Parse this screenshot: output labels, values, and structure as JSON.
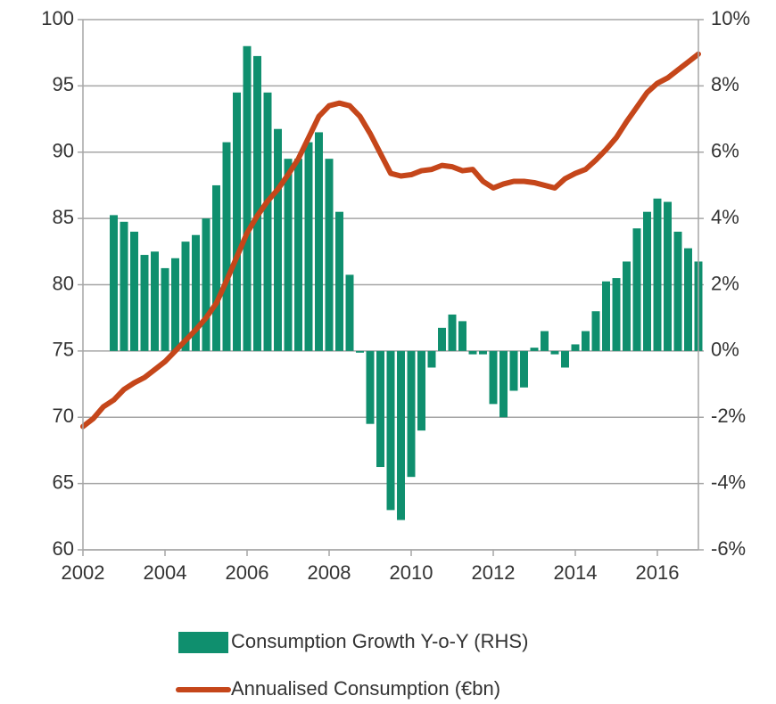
{
  "chart_data": {
    "type": "bar_line",
    "x": [
      2002.0,
      2002.25,
      2002.5,
      2002.75,
      2003.0,
      2003.25,
      2003.5,
      2003.75,
      2004.0,
      2004.25,
      2004.5,
      2004.75,
      2005.0,
      2005.25,
      2005.5,
      2005.75,
      2006.0,
      2006.25,
      2006.5,
      2006.75,
      2007.0,
      2007.25,
      2007.5,
      2007.75,
      2008.0,
      2008.25,
      2008.5,
      2008.75,
      2009.0,
      2009.25,
      2009.5,
      2009.75,
      2010.0,
      2010.25,
      2010.5,
      2010.75,
      2011.0,
      2011.25,
      2011.5,
      2011.75,
      2012.0,
      2012.25,
      2012.5,
      2012.75,
      2013.0,
      2013.25,
      2013.5,
      2013.75,
      2014.0,
      2014.25,
      2014.5,
      2014.75,
      2015.0,
      2015.25,
      2015.5,
      2015.75,
      2016.0,
      2016.25,
      2016.5,
      2016.75,
      2017.0
    ],
    "series": [
      {
        "name": "Consumption Growth Y-o-Y (RHS)",
        "type": "bar",
        "axis": "y2",
        "color": "#0f8f6e",
        "values": [
          null,
          null,
          null,
          4.1,
          3.9,
          3.6,
          2.9,
          3.0,
          2.5,
          2.8,
          3.3,
          3.5,
          4.0,
          5.0,
          6.3,
          7.8,
          9.2,
          8.9,
          7.8,
          6.7,
          5.8,
          5.8,
          6.3,
          6.6,
          5.8,
          4.2,
          2.3,
          -0.05,
          -2.2,
          -3.5,
          -4.8,
          -5.1,
          -3.8,
          -2.4,
          -0.5,
          0.7,
          1.1,
          0.9,
          -0.1,
          -0.1,
          -1.6,
          -2.0,
          -1.2,
          -1.1,
          0.1,
          0.6,
          -0.1,
          -0.5,
          0.2,
          0.6,
          1.2,
          2.1,
          2.2,
          2.7,
          3.7,
          4.2,
          4.6,
          4.5,
          3.6,
          3.1,
          2.7
        ]
      },
      {
        "name": "Annualised Consumption (€bn)",
        "type": "line",
        "color": "#c5461a",
        "values": [
          69.3,
          69.9,
          70.8,
          71.3,
          72.1,
          72.6,
          73.0,
          73.6,
          74.2,
          75.0,
          75.8,
          76.6,
          77.5,
          78.6,
          80.3,
          82.1,
          83.9,
          85.2,
          86.3,
          87.2,
          88.3,
          89.5,
          91.1,
          92.7,
          93.5,
          93.7,
          93.5,
          92.7,
          91.4,
          89.9,
          88.4,
          88.2,
          88.3,
          88.6,
          88.7,
          89.0,
          88.9,
          88.6,
          88.7,
          87.8,
          87.3,
          87.6,
          87.8,
          87.8,
          87.7,
          87.5,
          87.3,
          88.0,
          88.4,
          88.7,
          89.4,
          90.2,
          91.1,
          92.3,
          93.4,
          94.5,
          95.2,
          95.6,
          96.2,
          96.8,
          97.4
        ]
      }
    ],
    "xlim": [
      2002,
      2017
    ],
    "xticks": [
      2002,
      2004,
      2006,
      2008,
      2010,
      2012,
      2014,
      2016
    ],
    "ylim": [
      60,
      100
    ],
    "yticks": [
      60,
      65,
      70,
      75,
      80,
      85,
      90,
      95,
      100
    ],
    "y2lim": [
      -6,
      10
    ],
    "y2ticks": [
      {
        "value": -6,
        "label": "-6%"
      },
      {
        "value": -4,
        "label": "-4%"
      },
      {
        "value": -2,
        "label": "-2%"
      },
      {
        "value": 0,
        "label": "0%"
      },
      {
        "value": 2,
        "label": "2%"
      },
      {
        "value": 4,
        "label": "4%"
      },
      {
        "value": 6,
        "label": "6%"
      },
      {
        "value": 8,
        "label": "8%"
      },
      {
        "value": 10,
        "label": "10%"
      }
    ],
    "grid": true,
    "legend": "bottom"
  }
}
